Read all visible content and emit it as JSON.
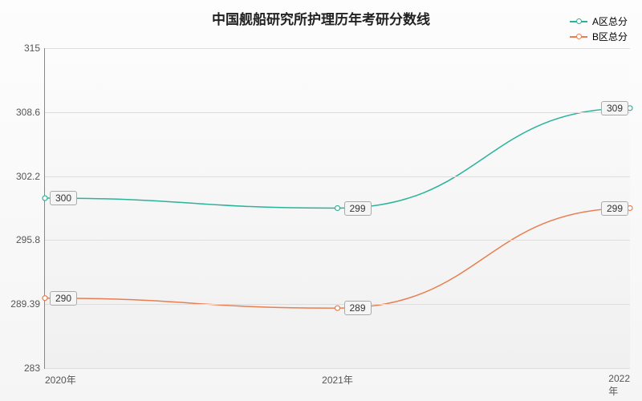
{
  "chart": {
    "type": "line",
    "title": "中国舰船研究所护理历年考研分数线",
    "title_fontsize": 17,
    "title_color": "#222222",
    "background_gradient_top": "#fdfdfd",
    "background_gradient_bottom": "#f0f0f0",
    "axis_color": "#888888",
    "grid_color": "#dddddd",
    "tick_fontsize": 12,
    "tick_color": "#555555",
    "label_fontsize": 12,
    "label_bg": "#f5f5f5",
    "label_border": "#aaaaaa",
    "x": {
      "categories": [
        "2020年",
        "2021年",
        "2022年"
      ]
    },
    "y": {
      "min": 283,
      "max": 315,
      "ticks": [
        283,
        289.39,
        295.8,
        302.2,
        308.6,
        315
      ]
    },
    "series": [
      {
        "name": "A区总分",
        "color": "#2bb39a",
        "values": [
          300,
          299,
          309
        ],
        "line_width": 1.5,
        "marker": "hollow-circle"
      },
      {
        "name": "B区总分",
        "color": "#e87e51",
        "values": [
          290,
          289,
          299
        ],
        "line_width": 1.5,
        "marker": "hollow-circle"
      }
    ],
    "legend": {
      "position": "top-right",
      "fontsize": 12
    }
  }
}
